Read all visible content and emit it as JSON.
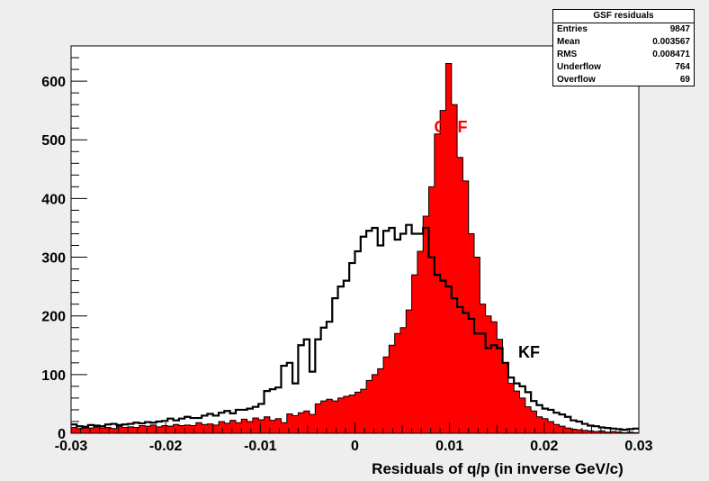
{
  "colors": {
    "gsf_fill": "#ff0000",
    "kf_line": "#000000",
    "frame_bg": "#eeeeee",
    "plot_bg": "#ffffff"
  },
  "stats": {
    "title": "GSF residuals",
    "rows": [
      {
        "label": "Entries",
        "value": "9847"
      },
      {
        "label": "Mean",
        "value": "0.003567"
      },
      {
        "label": "RMS",
        "value": "0.008471"
      },
      {
        "label": "Underflow",
        "value": "764"
      },
      {
        "label": "Overflow",
        "value": "69"
      }
    ]
  },
  "chart_data": {
    "type": "histogram",
    "title": "GSF residuals",
    "xlabel": "Residuals of q/p (in inverse GeV/c)",
    "ylabel": "",
    "xlim": [
      -0.03,
      0.03
    ],
    "ylim": [
      0,
      660
    ],
    "bin_width": 0.0006,
    "x_ticks": [
      "-0.03",
      "-0.02",
      "-0.01",
      "0",
      "0.01",
      "0.02",
      "0.03"
    ],
    "y_ticks": [
      "0",
      "100",
      "200",
      "300",
      "400",
      "500",
      "600"
    ],
    "annotations": [
      {
        "text": "GSF",
        "series": "GSF",
        "x": 0.0085,
        "y": 530
      },
      {
        "text": "KF",
        "series": "KF",
        "x": 0.0187,
        "y": 135
      }
    ],
    "series": [
      {
        "name": "GSF",
        "style": "filled",
        "values": [
          10,
          8,
          12,
          9,
          11,
          9,
          10,
          8,
          12,
          10,
          11,
          10,
          13,
          12,
          14,
          11,
          13,
          12,
          15,
          13,
          14,
          13,
          18,
          15,
          16,
          14,
          20,
          17,
          22,
          18,
          24,
          20,
          26,
          23,
          28,
          22,
          25,
          18,
          33,
          30,
          35,
          38,
          32,
          50,
          55,
          58,
          55,
          60,
          63,
          65,
          70,
          75,
          90,
          100,
          110,
          130,
          150,
          170,
          180,
          210,
          270,
          310,
          370,
          420,
          510,
          550,
          630,
          560,
          470,
          430,
          340,
          300,
          220,
          200,
          190,
          160,
          120,
          85,
          72,
          60,
          45,
          38,
          28,
          25,
          20,
          15,
          12,
          9,
          7,
          6,
          5,
          4,
          3,
          4,
          2,
          3,
          2,
          1,
          2,
          1
        ]
      },
      {
        "name": "KF",
        "style": "step",
        "values": [
          15,
          12,
          10,
          14,
          13,
          12,
          15,
          16,
          14,
          15,
          16,
          18,
          17,
          19,
          18,
          20,
          21,
          25,
          22,
          25,
          28,
          26,
          26,
          30,
          33,
          30,
          35,
          38,
          34,
          40,
          40,
          42,
          45,
          50,
          72,
          75,
          78,
          115,
          120,
          85,
          150,
          160,
          105,
          160,
          180,
          190,
          230,
          250,
          260,
          290,
          310,
          335,
          345,
          350,
          320,
          345,
          350,
          330,
          340,
          355,
          340,
          340,
          350,
          300,
          270,
          260,
          250,
          230,
          215,
          205,
          195,
          170,
          170,
          145,
          150,
          145,
          120,
          95,
          85,
          80,
          70,
          55,
          48,
          42,
          40,
          35,
          32,
          28,
          22,
          20,
          16,
          13,
          12,
          10,
          9,
          8,
          7,
          6,
          7,
          8
        ]
      }
    ]
  }
}
